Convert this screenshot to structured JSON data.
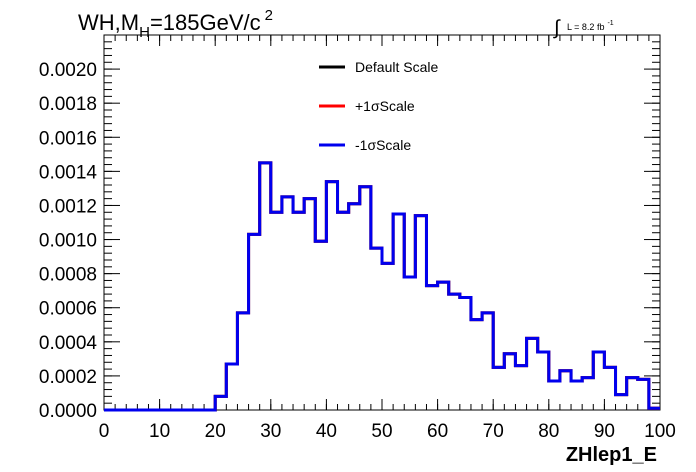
{
  "chart_data": {
    "type": "step",
    "title": {
      "prefix": "WH,M",
      "subscript": "H",
      "value": "=185GeV/c",
      "superscript": "2"
    },
    "lumi": {
      "symbol": "∫",
      "text": "L = 8.2 fb",
      "superscript": "-1"
    },
    "xlabel": "ZHlep1_E",
    "ylabel": "",
    "xlim": [
      0,
      100
    ],
    "ylim": [
      0,
      0.0022
    ],
    "x_ticks": [
      0,
      10,
      20,
      30,
      40,
      50,
      60,
      70,
      80,
      90,
      100
    ],
    "x_tick_labels": [
      "0",
      "10",
      "20",
      "30",
      "40",
      "50",
      "60",
      "70",
      "80",
      "90",
      "100"
    ],
    "y_ticks": [
      0,
      0.0002,
      0.0004,
      0.0006,
      0.0008,
      0.001,
      0.0012,
      0.0014,
      0.0016,
      0.0018,
      0.002
    ],
    "y_tick_labels": [
      "0.0000",
      "0.0002",
      "0.0004",
      "0.0006",
      "0.0008",
      "0.0010",
      "0.0012",
      "0.0014",
      "0.0016",
      "0.0018",
      "0.0020"
    ],
    "bin_edges": [
      0,
      2,
      4,
      6,
      8,
      10,
      12,
      14,
      16,
      18,
      20,
      22,
      24,
      26,
      28,
      30,
      32,
      34,
      36,
      38,
      40,
      42,
      44,
      46,
      48,
      50,
      52,
      54,
      56,
      58,
      60,
      62,
      64,
      66,
      68,
      70,
      72,
      74,
      76,
      78,
      80,
      82,
      84,
      86,
      88,
      90,
      92,
      94,
      96,
      98,
      100
    ],
    "legend_position": "top-center",
    "series": [
      {
        "name": "Default Scale",
        "color": "#000000",
        "values": [
          0,
          0,
          0,
          0,
          0,
          0,
          0,
          0,
          0,
          0,
          8e-05,
          0.00027,
          0.00057,
          0.00103,
          0.00145,
          0.00116,
          0.00125,
          0.00116,
          0.00124,
          0.00099,
          0.00134,
          0.00116,
          0.00121,
          0.00131,
          0.00095,
          0.00086,
          0.00115,
          0.00078,
          0.00114,
          0.00073,
          0.00075,
          0.00068,
          0.00066,
          0.00053,
          0.00057,
          0.00025,
          0.00033,
          0.00026,
          0.00042,
          0.00034,
          0.00017,
          0.00023,
          0.00017,
          0.00019,
          0.00034,
          0.00025,
          9e-05,
          0.00019,
          0.00018,
          1e-05
        ]
      },
      {
        "name": "+1σScale",
        "color": "#ff0000",
        "values": [
          0,
          0,
          0,
          0,
          0,
          0,
          0,
          0,
          0,
          0,
          8e-05,
          0.00027,
          0.00057,
          0.00103,
          0.00145,
          0.00116,
          0.00125,
          0.00116,
          0.00124,
          0.00099,
          0.00134,
          0.00116,
          0.00121,
          0.00131,
          0.00095,
          0.00086,
          0.00115,
          0.00078,
          0.00114,
          0.00073,
          0.00075,
          0.00068,
          0.00066,
          0.00053,
          0.00057,
          0.00025,
          0.00033,
          0.00026,
          0.00042,
          0.00034,
          0.00017,
          0.00023,
          0.00017,
          0.00019,
          0.00034,
          0.00025,
          9e-05,
          0.00019,
          0.00018,
          1e-05
        ]
      },
      {
        "name": "-1σScale",
        "color": "#0000ee",
        "values": [
          0,
          0,
          0,
          0,
          0,
          0,
          0,
          0,
          0,
          0,
          8e-05,
          0.00027,
          0.00057,
          0.00103,
          0.00145,
          0.00116,
          0.00125,
          0.00116,
          0.00124,
          0.00099,
          0.00134,
          0.00116,
          0.00121,
          0.00131,
          0.00095,
          0.00086,
          0.00115,
          0.00078,
          0.00114,
          0.00073,
          0.00075,
          0.00068,
          0.00066,
          0.00053,
          0.00057,
          0.00025,
          0.00033,
          0.00026,
          0.00042,
          0.00034,
          0.00017,
          0.00023,
          0.00017,
          0.00019,
          0.00034,
          0.00025,
          9e-05,
          0.00019,
          0.00018,
          1e-05
        ]
      }
    ]
  }
}
